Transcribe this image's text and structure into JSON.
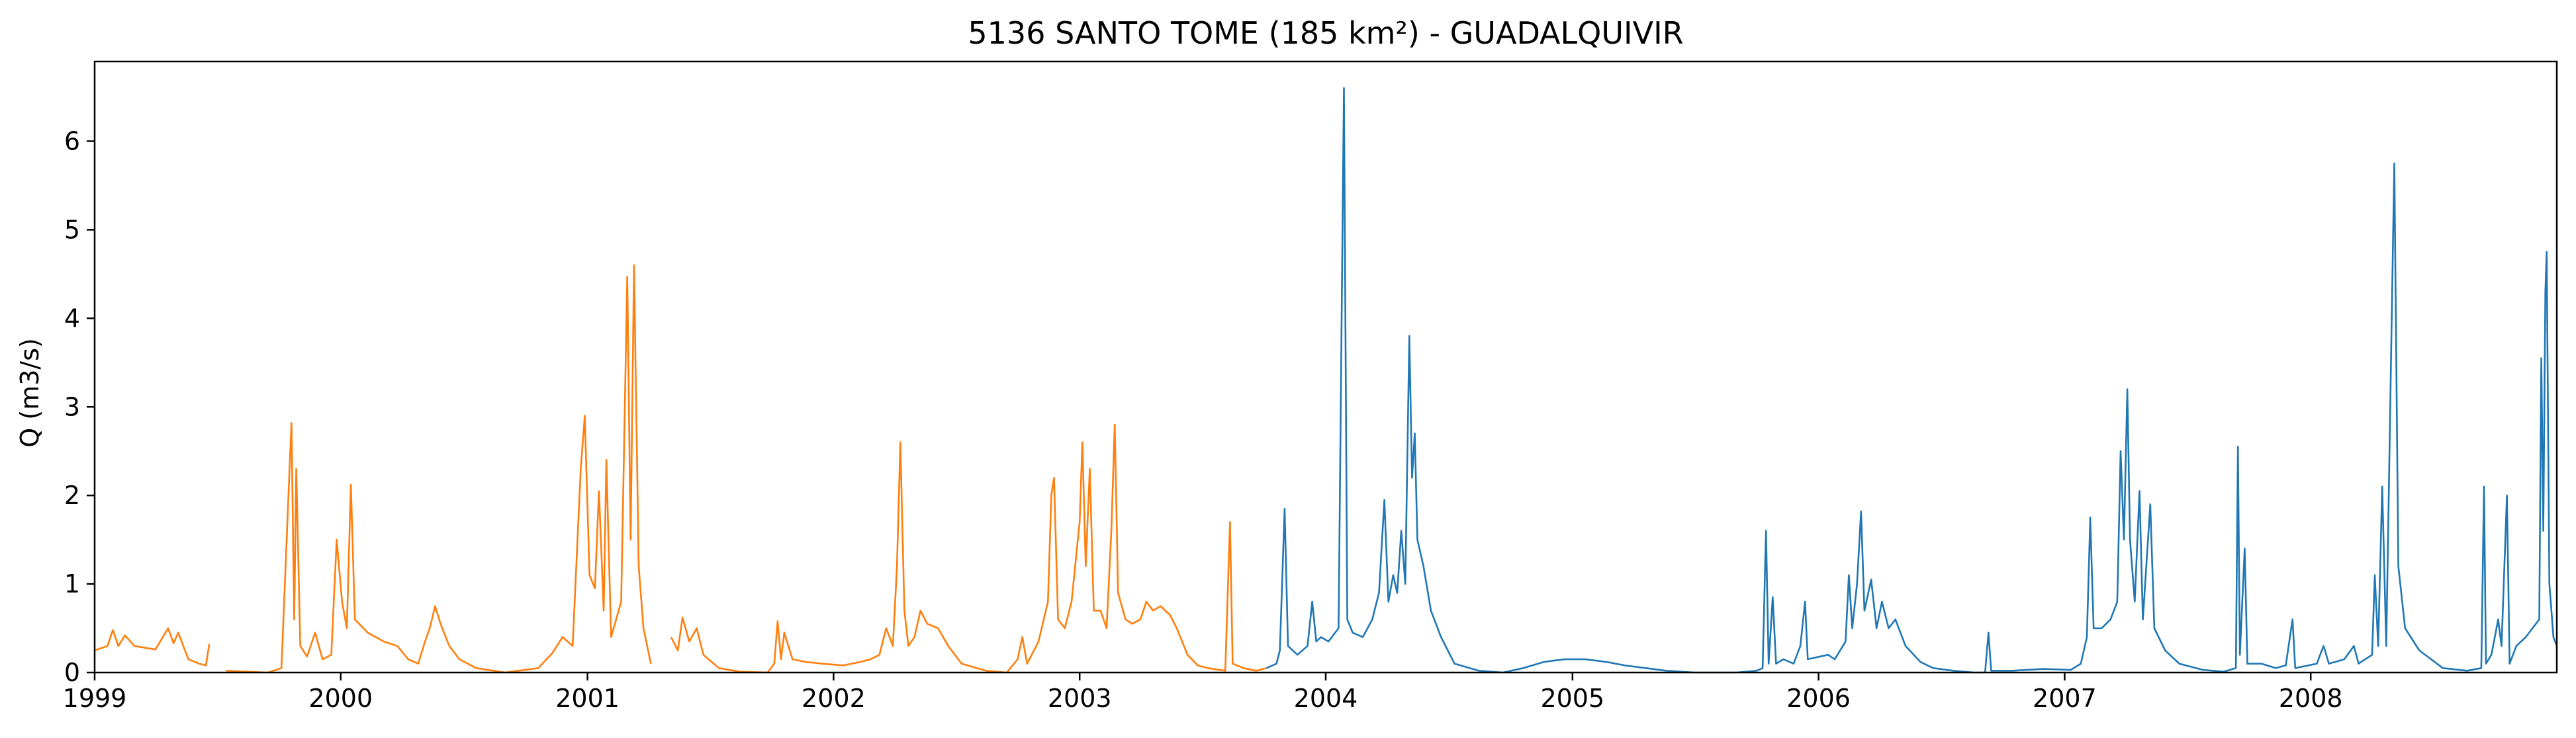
{
  "chart_data": {
    "type": "line",
    "title": "5136 SANTO TOME (185 km²) - GUADALQUIVIR",
    "xlabel": "",
    "ylabel": "Q (m3/s)",
    "xlim": [
      "1999-01-01",
      "2008-12-31"
    ],
    "ylim": [
      0,
      6.9
    ],
    "x_ticks": [
      "1999",
      "2000",
      "2001",
      "2002",
      "2003",
      "2004",
      "2005",
      "2006",
      "2007",
      "2008"
    ],
    "y_ticks": [
      "0",
      "1",
      "2",
      "3",
      "4",
      "5",
      "6"
    ],
    "grid": false,
    "legend": null,
    "colors": {
      "series_1": "#ff7f0e",
      "series_2": "#1f77b4"
    },
    "series": [
      {
        "color": "#ff7f0e",
        "points": [
          [
            "1999-01-01",
            0.25
          ],
          [
            "1999-01-20",
            0.3
          ],
          [
            "1999-01-28",
            0.48
          ],
          [
            "1999-02-05",
            0.3
          ],
          [
            "1999-02-15",
            0.42
          ],
          [
            "1999-03-01",
            0.3
          ],
          [
            "1999-04-01",
            0.26
          ],
          [
            "1999-04-20",
            0.5
          ],
          [
            "1999-04-28",
            0.33
          ],
          [
            "1999-05-05",
            0.45
          ],
          [
            "1999-05-20",
            0.15
          ],
          [
            "1999-06-05",
            0.1
          ],
          [
            "1999-06-15",
            0.08
          ],
          [
            "1999-06-20",
            0.32
          ],
          [
            "1999-06-25",
            null
          ],
          [
            "1999-07-15",
            0.02
          ],
          [
            "1999-08-15",
            0.01
          ],
          [
            "1999-09-15",
            0.0
          ],
          [
            "1999-10-05",
            0.05
          ],
          [
            "1999-10-15",
            1.9
          ],
          [
            "1999-10-20",
            2.82
          ],
          [
            "1999-10-24",
            0.6
          ],
          [
            "1999-10-27",
            2.3
          ],
          [
            "1999-11-02",
            0.3
          ],
          [
            "1999-11-12",
            0.18
          ],
          [
            "1999-11-24",
            0.45
          ],
          [
            "1999-12-05",
            0.15
          ],
          [
            "1999-12-18",
            0.2
          ],
          [
            "1999-12-26",
            1.5
          ],
          [
            "2000-01-03",
            0.8
          ],
          [
            "2000-01-10",
            0.5
          ],
          [
            "2000-01-16",
            2.12
          ],
          [
            "2000-01-22",
            0.6
          ],
          [
            "2000-02-10",
            0.45
          ],
          [
            "2000-03-05",
            0.35
          ],
          [
            "2000-03-25",
            0.3
          ],
          [
            "2000-04-10",
            0.15
          ],
          [
            "2000-04-25",
            0.1
          ],
          [
            "2000-05-05",
            0.35
          ],
          [
            "2000-05-12",
            0.5
          ],
          [
            "2000-05-20",
            0.75
          ],
          [
            "2000-05-28",
            0.55
          ],
          [
            "2000-06-10",
            0.3
          ],
          [
            "2000-06-25",
            0.15
          ],
          [
            "2000-07-20",
            0.05
          ],
          [
            "2000-09-01",
            0.0
          ],
          [
            "2000-10-20",
            0.05
          ],
          [
            "2000-11-10",
            0.22
          ],
          [
            "2000-11-25",
            0.4
          ],
          [
            "2000-12-10",
            0.3
          ],
          [
            "2000-12-22",
            2.3
          ],
          [
            "2000-12-28",
            2.9
          ],
          [
            "2001-01-04",
            1.1
          ],
          [
            "2001-01-12",
            0.95
          ],
          [
            "2001-01-18",
            2.05
          ],
          [
            "2001-01-25",
            0.7
          ],
          [
            "2001-01-29",
            2.4
          ],
          [
            "2001-02-05",
            0.4
          ],
          [
            "2001-02-20",
            0.8
          ],
          [
            "2001-03-01",
            4.47
          ],
          [
            "2001-03-06",
            1.5
          ],
          [
            "2001-03-11",
            4.6
          ],
          [
            "2001-03-18",
            1.2
          ],
          [
            "2001-03-25",
            0.5
          ],
          [
            "2001-04-05",
            0.1
          ],
          [
            "2001-04-10",
            null
          ],
          [
            "2001-05-05",
            0.4
          ],
          [
            "2001-05-15",
            0.25
          ],
          [
            "2001-05-22",
            0.62
          ],
          [
            "2001-06-01",
            0.35
          ],
          [
            "2001-06-12",
            0.5
          ],
          [
            "2001-06-22",
            0.2
          ],
          [
            "2001-07-15",
            0.05
          ],
          [
            "2001-08-15",
            0.01
          ],
          [
            "2001-09-25",
            0.0
          ],
          [
            "2001-10-05",
            0.1
          ],
          [
            "2001-10-10",
            0.58
          ],
          [
            "2001-10-15",
            0.15
          ],
          [
            "2001-10-20",
            0.45
          ],
          [
            "2001-11-01",
            0.15
          ],
          [
            "2001-11-20",
            0.12
          ],
          [
            "2001-12-15",
            0.1
          ],
          [
            "2002-01-15",
            0.08
          ],
          [
            "2002-02-10",
            0.12
          ],
          [
            "2002-02-25",
            0.15
          ],
          [
            "2002-03-10",
            0.2
          ],
          [
            "2002-03-20",
            0.5
          ],
          [
            "2002-03-30",
            0.3
          ],
          [
            "2002-04-05",
            1.2
          ],
          [
            "2002-04-10",
            2.6
          ],
          [
            "2002-04-16",
            0.7
          ],
          [
            "2002-04-22",
            0.3
          ],
          [
            "2002-05-01",
            0.4
          ],
          [
            "2002-05-10",
            0.7
          ],
          [
            "2002-05-20",
            0.55
          ],
          [
            "2002-06-05",
            0.5
          ],
          [
            "2002-06-20",
            0.3
          ],
          [
            "2002-07-10",
            0.1
          ],
          [
            "2002-08-15",
            0.02
          ],
          [
            "2002-09-15",
            0.0
          ],
          [
            "2002-10-01",
            0.15
          ],
          [
            "2002-10-08",
            0.4
          ],
          [
            "2002-10-15",
            0.1
          ],
          [
            "2002-11-01",
            0.35
          ],
          [
            "2002-11-15",
            0.8
          ],
          [
            "2002-11-20",
            2.0
          ],
          [
            "2002-11-24",
            2.2
          ],
          [
            "2002-11-30",
            0.6
          ],
          [
            "2002-12-10",
            0.5
          ],
          [
            "2002-12-20",
            0.8
          ],
          [
            "2003-01-01",
            1.7
          ],
          [
            "2003-01-05",
            2.6
          ],
          [
            "2003-01-10",
            1.2
          ],
          [
            "2003-01-16",
            2.3
          ],
          [
            "2003-01-22",
            0.7
          ],
          [
            "2003-02-01",
            0.7
          ],
          [
            "2003-02-10",
            0.5
          ],
          [
            "2003-02-17",
            1.6
          ],
          [
            "2003-02-22",
            2.8
          ],
          [
            "2003-02-27",
            0.9
          ],
          [
            "2003-03-10",
            0.6
          ],
          [
            "2003-03-20",
            0.55
          ],
          [
            "2003-04-01",
            0.6
          ],
          [
            "2003-04-10",
            0.8
          ],
          [
            "2003-04-20",
            0.7
          ],
          [
            "2003-05-01",
            0.75
          ],
          [
            "2003-05-15",
            0.65
          ],
          [
            "2003-05-25",
            0.5
          ],
          [
            "2003-06-10",
            0.2
          ],
          [
            "2003-06-25",
            0.08
          ],
          [
            "2003-07-10",
            0.05
          ],
          [
            "2003-08-05",
            0.02
          ],
          [
            "2003-08-12",
            1.7
          ],
          [
            "2003-08-16",
            0.1
          ],
          [
            "2003-09-01",
            0.05
          ],
          [
            "2003-09-20",
            0.02
          ],
          [
            "2003-10-05",
            0.05
          ]
        ]
      },
      {
        "color": "#1f77b4",
        "points": [
          [
            "2003-10-05",
            0.05
          ],
          [
            "2003-10-20",
            0.1
          ],
          [
            "2003-10-25",
            0.25
          ],
          [
            "2003-11-01",
            1.85
          ],
          [
            "2003-11-06",
            0.3
          ],
          [
            "2003-11-20",
            0.2
          ],
          [
            "2003-12-05",
            0.3
          ],
          [
            "2003-12-12",
            0.8
          ],
          [
            "2003-12-18",
            0.35
          ],
          [
            "2003-12-25",
            0.4
          ],
          [
            "2004-01-05",
            0.35
          ],
          [
            "2004-01-20",
            0.5
          ],
          [
            "2004-01-28",
            6.6
          ],
          [
            "2004-02-02",
            0.6
          ],
          [
            "2004-02-10",
            0.45
          ],
          [
            "2004-02-25",
            0.4
          ],
          [
            "2004-03-10",
            0.6
          ],
          [
            "2004-03-20",
            0.9
          ],
          [
            "2004-03-28",
            1.95
          ],
          [
            "2004-04-03",
            0.8
          ],
          [
            "2004-04-10",
            1.1
          ],
          [
            "2004-04-16",
            0.9
          ],
          [
            "2004-04-22",
            1.6
          ],
          [
            "2004-04-28",
            1.0
          ],
          [
            "2004-05-04",
            3.8
          ],
          [
            "2004-05-08",
            2.2
          ],
          [
            "2004-05-12",
            2.7
          ],
          [
            "2004-05-16",
            1.5
          ],
          [
            "2004-05-25",
            1.2
          ],
          [
            "2004-06-05",
            0.7
          ],
          [
            "2004-06-20",
            0.4
          ],
          [
            "2004-07-10",
            0.1
          ],
          [
            "2004-08-15",
            0.02
          ],
          [
            "2004-09-20",
            0.0
          ],
          [
            "2004-10-20",
            0.05
          ],
          [
            "2004-11-20",
            0.12
          ],
          [
            "2004-12-20",
            0.15
          ],
          [
            "2005-01-20",
            0.15
          ],
          [
            "2005-02-20",
            0.12
          ],
          [
            "2005-03-20",
            0.08
          ],
          [
            "2005-04-20",
            0.05
          ],
          [
            "2005-05-20",
            0.02
          ],
          [
            "2005-07-01",
            0.0
          ],
          [
            "2005-09-01",
            0.0
          ],
          [
            "2005-10-01",
            0.02
          ],
          [
            "2005-10-10",
            0.05
          ],
          [
            "2005-10-15",
            1.6
          ],
          [
            "2005-10-19",
            0.1
          ],
          [
            "2005-10-25",
            0.85
          ],
          [
            "2005-10-30",
            0.1
          ],
          [
            "2005-11-10",
            0.15
          ],
          [
            "2005-11-25",
            0.1
          ],
          [
            "2005-12-05",
            0.3
          ],
          [
            "2005-12-12",
            0.8
          ],
          [
            "2005-12-16",
            0.15
          ],
          [
            "2006-01-15",
            0.2
          ],
          [
            "2006-01-25",
            0.15
          ],
          [
            "2006-02-10",
            0.35
          ],
          [
            "2006-02-15",
            1.1
          ],
          [
            "2006-02-20",
            0.5
          ],
          [
            "2006-02-27",
            1.0
          ],
          [
            "2006-03-05",
            1.82
          ],
          [
            "2006-03-10",
            0.7
          ],
          [
            "2006-03-20",
            1.05
          ],
          [
            "2006-03-28",
            0.5
          ],
          [
            "2006-04-05",
            0.8
          ],
          [
            "2006-04-15",
            0.5
          ],
          [
            "2006-04-25",
            0.6
          ],
          [
            "2006-05-10",
            0.3
          ],
          [
            "2006-06-01",
            0.12
          ],
          [
            "2006-06-20",
            0.05
          ],
          [
            "2006-07-20",
            0.02
          ],
          [
            "2006-08-20",
            0.0
          ],
          [
            "2006-09-05",
            0.0
          ],
          [
            "2006-09-10",
            0.45
          ],
          [
            "2006-09-14",
            0.02
          ],
          [
            "2006-10-15",
            0.02
          ],
          [
            "2006-12-01",
            0.04
          ],
          [
            "2007-01-10",
            0.03
          ],
          [
            "2007-01-25",
            0.1
          ],
          [
            "2007-02-03",
            0.4
          ],
          [
            "2007-02-08",
            1.75
          ],
          [
            "2007-02-13",
            0.5
          ],
          [
            "2007-02-25",
            0.5
          ],
          [
            "2007-03-10",
            0.6
          ],
          [
            "2007-03-20",
            0.8
          ],
          [
            "2007-03-25",
            2.5
          ],
          [
            "2007-03-30",
            1.5
          ],
          [
            "2007-04-04",
            3.2
          ],
          [
            "2007-04-08",
            1.5
          ],
          [
            "2007-04-15",
            0.8
          ],
          [
            "2007-04-22",
            2.05
          ],
          [
            "2007-04-27",
            0.6
          ],
          [
            "2007-05-08",
            1.9
          ],
          [
            "2007-05-14",
            0.5
          ],
          [
            "2007-05-30",
            0.25
          ],
          [
            "2007-06-20",
            0.1
          ],
          [
            "2007-07-25",
            0.03
          ],
          [
            "2007-08-25",
            0.01
          ],
          [
            "2007-09-12",
            0.05
          ],
          [
            "2007-09-15",
            2.55
          ],
          [
            "2007-09-18",
            0.2
          ],
          [
            "2007-09-25",
            1.4
          ],
          [
            "2007-09-29",
            0.1
          ],
          [
            "2007-10-20",
            0.1
          ],
          [
            "2007-11-10",
            0.05
          ],
          [
            "2007-11-25",
            0.08
          ],
          [
            "2007-12-05",
            0.6
          ],
          [
            "2007-12-09",
            0.05
          ],
          [
            "2008-01-10",
            0.1
          ],
          [
            "2008-01-20",
            0.3
          ],
          [
            "2008-01-28",
            0.1
          ],
          [
            "2008-02-20",
            0.15
          ],
          [
            "2008-03-05",
            0.3
          ],
          [
            "2008-03-12",
            0.1
          ],
          [
            "2008-04-01",
            0.2
          ],
          [
            "2008-04-05",
            1.1
          ],
          [
            "2008-04-10",
            0.3
          ],
          [
            "2008-04-16",
            2.1
          ],
          [
            "2008-04-22",
            0.3
          ],
          [
            "2008-05-04",
            5.75
          ],
          [
            "2008-05-10",
            1.2
          ],
          [
            "2008-05-20",
            0.5
          ],
          [
            "2008-06-10",
            0.25
          ],
          [
            "2008-07-15",
            0.05
          ],
          [
            "2008-08-20",
            0.02
          ],
          [
            "2008-09-10",
            0.05
          ],
          [
            "2008-09-14",
            2.1
          ],
          [
            "2008-09-17",
            0.1
          ],
          [
            "2008-09-25",
            0.2
          ],
          [
            "2008-10-05",
            0.6
          ],
          [
            "2008-10-10",
            0.3
          ],
          [
            "2008-10-18",
            2.0
          ],
          [
            "2008-10-22",
            0.1
          ],
          [
            "2008-11-01",
            0.3
          ],
          [
            "2008-11-15",
            0.4
          ],
          [
            "2008-11-25",
            0.5
          ],
          [
            "2008-12-05",
            0.6
          ],
          [
            "2008-12-08",
            3.55
          ],
          [
            "2008-12-11",
            1.6
          ],
          [
            "2008-12-14",
            4.3
          ],
          [
            "2008-12-16",
            4.75
          ],
          [
            "2008-12-20",
            1.0
          ],
          [
            "2008-12-26",
            0.4
          ],
          [
            "2008-12-31",
            0.3
          ]
        ]
      }
    ]
  }
}
